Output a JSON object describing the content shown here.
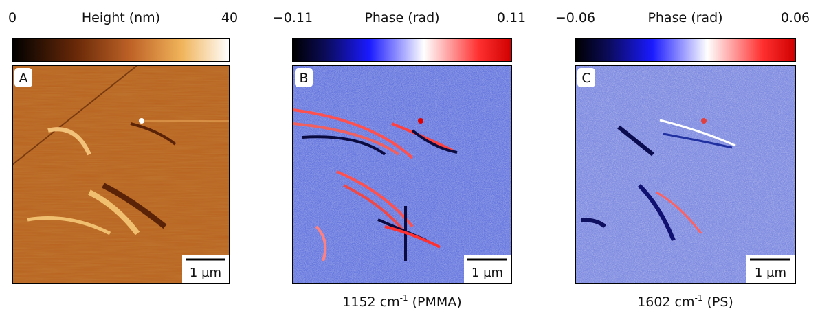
{
  "panels": [
    {
      "letter": "A",
      "colorbar": {
        "min": "0",
        "title": "Height (nm)",
        "max": "40"
      },
      "scale_bar": "1 µm"
    },
    {
      "letter": "B",
      "colorbar": {
        "min": "−0.11",
        "title": "Phase (rad)",
        "max": "0.11"
      },
      "scale_bar": "1 µm",
      "caption": {
        "text": "1152 cm",
        "sup": "-1",
        "suffix": "(PMMA)"
      }
    },
    {
      "letter": "C",
      "colorbar": {
        "min": "−0.06",
        "title": "Phase (rad)",
        "max": "0.06"
      },
      "scale_bar": "1 µm",
      "caption": {
        "text": "1602 cm",
        "sup": "-1",
        "suffix": "(PS)"
      }
    }
  ]
}
